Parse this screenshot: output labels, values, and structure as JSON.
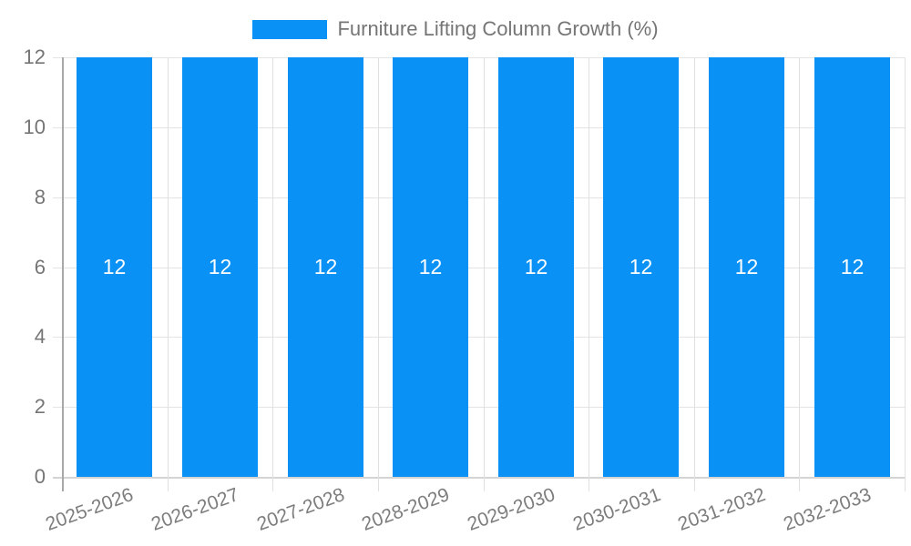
{
  "legend": {
    "label": "Furniture Lifting Column Growth (%)",
    "swatch_color": "#0a91f5"
  },
  "chart_data": {
    "type": "bar",
    "title": "Furniture Lifting Column Growth (%)",
    "categories": [
      "2025-2026",
      "2026-2027",
      "2027-2028",
      "2028-2029",
      "2029-2030",
      "2030-2031",
      "2031-2032",
      "2032-2033"
    ],
    "series": [
      {
        "name": "Furniture Lifting Column Growth (%)",
        "values": [
          12,
          12,
          12,
          12,
          12,
          12,
          12,
          12
        ],
        "color": "#0a91f5"
      }
    ],
    "bar_value_labels": [
      "12",
      "12",
      "12",
      "12",
      "12",
      "12",
      "12",
      "12"
    ],
    "xlabel": "",
    "ylabel": "",
    "ylim": [
      0,
      12
    ],
    "yticks": [
      0,
      2,
      4,
      6,
      8,
      10,
      12
    ],
    "ytick_labels": [
      "0",
      "2",
      "4",
      "6",
      "8",
      "10",
      "12"
    ],
    "grid": true,
    "legend_position": "top",
    "x_labels_rotated_deg": -20
  },
  "colors": {
    "bar": "#0a91f5",
    "bar_value_text": "#ffffff",
    "axis_text": "#757575",
    "gridline": "#e4e4e4",
    "y_axis_line": "#a8a8a8",
    "x_axis_line": "#d4d4d4",
    "background": "#ffffff"
  }
}
